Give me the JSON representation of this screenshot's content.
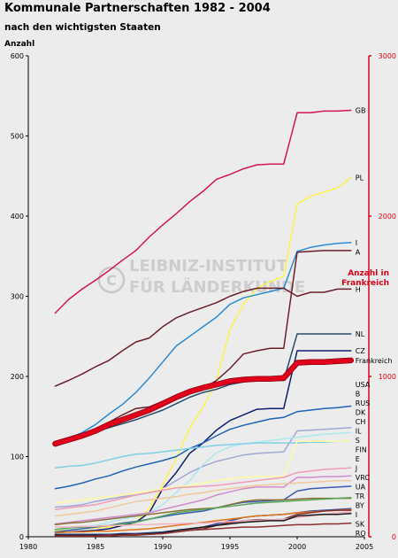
{
  "chart_data": {
    "type": "line",
    "title": "Kommunale Partnerschaften 1982 - 2004",
    "subtitle": "nach den wichtigsten Staaten",
    "ylabel": "Anzahl",
    "y2label_line1": "Anzahl in",
    "y2label_line2": "Frankreich",
    "xlim": [
      1980,
      2005
    ],
    "ylim": [
      0,
      600
    ],
    "y2lim": [
      0,
      3000
    ],
    "x_ticks": [
      1980,
      1985,
      1990,
      1995,
      2000,
      2005
    ],
    "y_ticks": [
      0,
      100,
      200,
      300,
      400,
      500,
      600
    ],
    "y2_ticks": [
      0,
      1000,
      2000,
      3000
    ],
    "grid": false,
    "watermark_line1": "LEIBNIZ-INSTITUT",
    "watermark_line2": "FÜR LÄNDERKUNDE",
    "x": [
      1982,
      1983,
      1984,
      1985,
      1986,
      1987,
      1988,
      1989,
      1990,
      1991,
      1992,
      1993,
      1994,
      1995,
      1996,
      1997,
      1998,
      1999,
      2000,
      2001,
      2002,
      2003,
      2004
    ],
    "series": [
      {
        "name": "GB",
        "color": "#d4145a",
        "values": [
          279,
          296,
          309,
          320,
          332,
          345,
          357,
          374,
          389,
          403,
          418,
          431,
          446,
          452,
          459,
          464,
          465,
          465,
          529,
          529,
          531,
          531,
          532
        ]
      },
      {
        "name": "PL",
        "color": "#fff24a",
        "values": [
          8,
          9,
          10,
          11,
          12,
          14,
          18,
          35,
          65,
          98,
          135,
          162,
          196,
          258,
          290,
          310,
          318,
          325,
          415,
          425,
          430,
          435,
          448
        ]
      },
      {
        "name": "I",
        "color": "#2a8ad4",
        "values": [
          118,
          123,
          130,
          140,
          153,
          165,
          180,
          198,
          218,
          238,
          250,
          262,
          274,
          290,
          298,
          302,
          306,
          310,
          356,
          361,
          364,
          366,
          367
        ]
      },
      {
        "name": "A",
        "color": "#6b1e29",
        "values": [
          118,
          122,
          128,
          135,
          143,
          152,
          160,
          162,
          169,
          175,
          180,
          185,
          195,
          210,
          228,
          232,
          235,
          235,
          355,
          356,
          357,
          357,
          357
        ]
      },
      {
        "name": "H",
        "color": "#6b1e29",
        "values": [
          188,
          195,
          203,
          212,
          220,
          232,
          243,
          248,
          262,
          273,
          280,
          286,
          292,
          300,
          306,
          310,
          310,
          310,
          300,
          305,
          305,
          309,
          309
        ]
      },
      {
        "name": "NL",
        "color": "#2a4a6a",
        "values": [
          113,
          119,
          124,
          131,
          136,
          141,
          146,
          152,
          158,
          166,
          174,
          180,
          184,
          190,
          193,
          195,
          195,
          195,
          253,
          253,
          253,
          253,
          253
        ]
      },
      {
        "name": "CZ",
        "color": "#0f1f6e",
        "values": [
          5,
          6,
          7,
          8,
          10,
          14,
          18,
          30,
          60,
          80,
          104,
          117,
          133,
          145,
          152,
          159,
          160,
          160,
          232,
          232,
          232,
          232,
          232
        ]
      },
      {
        "name": "USA",
        "color": "#1e63b4",
        "values": [
          60,
          63,
          67,
          72,
          76,
          82,
          87,
          91,
          95,
          100,
          110,
          117,
          126,
          134,
          139,
          143,
          147,
          149,
          156,
          158,
          160,
          161,
          163
        ]
      },
      {
        "name": "B",
        "color": "#a0a6d6",
        "values": [
          37,
          38,
          40,
          44,
          47,
          50,
          52,
          55,
          60,
          70,
          80,
          88,
          94,
          98,
          102,
          104,
          105,
          106,
          132,
          133,
          134,
          135,
          136
        ]
      },
      {
        "name": "RUS",
        "color": "#aee8ee",
        "values": [
          9,
          10,
          12,
          14,
          18,
          22,
          25,
          30,
          40,
          55,
          70,
          90,
          105,
          112,
          116,
          118,
          120,
          122,
          124,
          126,
          128,
          129,
          130
        ]
      },
      {
        "name": "DK",
        "color": "#80cfe8",
        "values": [
          86,
          88,
          89,
          92,
          96,
          100,
          103,
          104,
          106,
          108,
          110,
          112,
          114,
          115,
          116,
          117,
          117,
          117,
          117,
          118,
          118,
          119,
          120
        ]
      },
      {
        "name": "CH",
        "color": "#fffaa0",
        "values": [
          42,
          44,
          46,
          48,
          50,
          52,
          55,
          57,
          60,
          62,
          64,
          67,
          70,
          72,
          74,
          75,
          75,
          75,
          119,
          119,
          119,
          119,
          120
        ]
      },
      {
        "name": "IL",
        "color": "#f09cb8",
        "values": [
          34,
          36,
          38,
          40,
          44,
          48,
          52,
          55,
          58,
          61,
          62,
          63,
          64,
          66,
          68,
          70,
          72,
          74,
          80,
          82,
          84,
          85,
          86
        ]
      },
      {
        "name": "S",
        "color": "#d08ad0",
        "values": [
          16,
          18,
          20,
          22,
          24,
          26,
          28,
          30,
          34,
          38,
          42,
          46,
          52,
          56,
          60,
          62,
          62,
          62,
          74,
          74,
          75,
          75,
          76
        ]
      },
      {
        "name": "FIN",
        "color": "#f0c89c",
        "values": [
          26,
          28,
          30,
          32,
          36,
          40,
          44,
          46,
          48,
          50,
          53,
          55,
          58,
          60,
          62,
          64,
          65,
          66,
          67,
          68,
          69,
          70,
          70
        ]
      },
      {
        "name": "E",
        "color": "#3a5ab4",
        "values": [
          6,
          8,
          10,
          12,
          14,
          17,
          19,
          22,
          25,
          28,
          30,
          32,
          36,
          40,
          43,
          44,
          45,
          46,
          57,
          60,
          61,
          62,
          63
        ]
      },
      {
        "name": "VRC",
        "color": "#8a7038",
        "values": [
          15,
          17,
          18,
          20,
          22,
          24,
          26,
          28,
          30,
          32,
          34,
          35,
          36,
          40,
          44,
          46,
          46,
          46,
          47,
          48,
          48,
          48,
          48
        ]
      },
      {
        "name": "J",
        "color": "#58a858",
        "values": [
          9,
          11,
          12,
          13,
          14,
          16,
          18,
          22,
          26,
          30,
          32,
          34,
          36,
          38,
          40,
          42,
          43,
          44,
          45,
          46,
          47,
          48,
          49
        ]
      },
      {
        "name": "UA",
        "color": "#2a4aa0",
        "values": [
          3,
          3,
          3,
          3,
          3,
          4,
          4,
          5,
          6,
          8,
          10,
          12,
          16,
          20,
          24,
          26,
          27,
          28,
          30,
          32,
          33,
          34,
          35
        ]
      },
      {
        "name": "TR",
        "color": "#e07818",
        "values": [
          5,
          6,
          6,
          7,
          7,
          8,
          9,
          10,
          12,
          14,
          16,
          18,
          20,
          22,
          24,
          26,
          27,
          28,
          30,
          31,
          32,
          33,
          34
        ]
      },
      {
        "name": "BY",
        "color": "#8a2e2e",
        "values": [
          1,
          1,
          1,
          1,
          1,
          2,
          2,
          3,
          4,
          6,
          8,
          10,
          14,
          18,
          20,
          21,
          21,
          22,
          28,
          30,
          32,
          33,
          33
        ]
      },
      {
        "name": "I",
        "color": "#f0b0c0",
        "values": [
          12,
          12,
          13,
          13,
          14,
          14,
          15,
          15,
          16,
          16,
          17,
          17,
          18,
          19,
          20,
          20,
          21,
          22,
          24,
          26,
          28,
          30,
          31
        ]
      },
      {
        "name": "SK",
        "color": "#1a1a1a",
        "values": [
          2,
          2,
          2,
          2,
          2,
          3,
          3,
          4,
          5,
          8,
          10,
          12,
          14,
          16,
          18,
          19,
          20,
          20,
          26,
          27,
          28,
          28,
          29
        ]
      },
      {
        "name": "RO",
        "color": "#8a2e2e",
        "values": [
          1,
          1,
          1,
          1,
          2,
          2,
          3,
          3,
          4,
          6,
          8,
          9,
          10,
          11,
          12,
          12,
          13,
          14,
          15,
          15,
          16,
          16,
          17
        ]
      },
      {
        "name": "Frankreich",
        "color": "#e0001a",
        "axis": "right",
        "width": 5,
        "values": [
          580,
          605,
          630,
          660,
          700,
          730,
          760,
          790,
          830,
          870,
          905,
          930,
          950,
          970,
          980,
          985,
          985,
          990,
          1085,
          1090,
          1090,
          1095,
          1100
        ]
      }
    ]
  }
}
